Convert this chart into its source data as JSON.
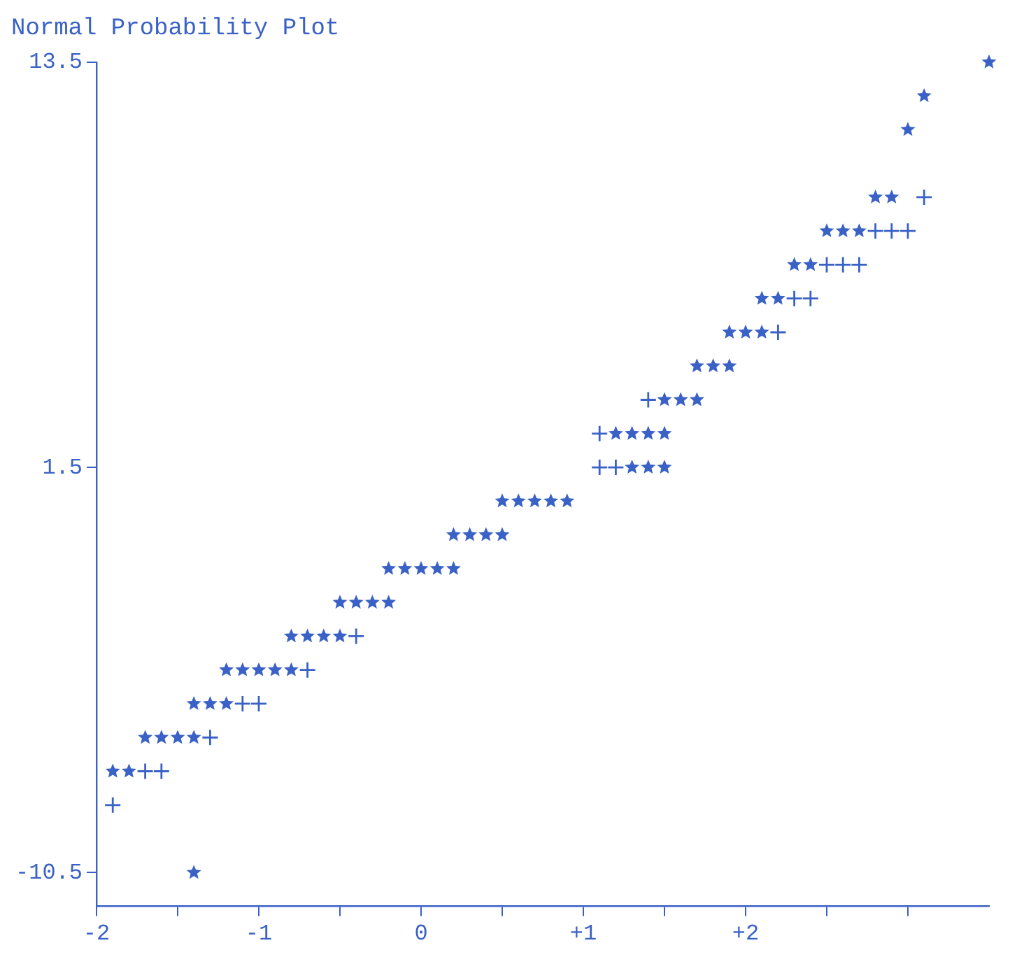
{
  "chart_data": {
    "type": "scatter",
    "title": "Normal Probability Plot",
    "xlim": [
      -2,
      3.5
    ],
    "xticks": [
      -2,
      {
        "value": -1.5,
        "label": null
      },
      -1,
      {
        "value": -0.5,
        "label": null
      },
      0,
      {
        "value": 0.5,
        "label": null
      },
      {
        "value": 1,
        "label": "+1"
      },
      {
        "value": 1.5,
        "label": null
      },
      {
        "value": 2,
        "label": "+2"
      },
      {
        "value": 2.5,
        "label": null
      },
      {
        "value": 3,
        "label": null
      }
    ],
    "ylim": [
      -11.5,
      13.5
    ],
    "yticks": [
      -10.5,
      1.5,
      13.5
    ],
    "grid": false,
    "series": [
      {
        "type": "scatter",
        "marker": "star",
        "color": "#3a62c6",
        "x": [
          -1.4,
          -1.9,
          -1.8,
          -1.7,
          -1.6,
          -1.5,
          -1.4,
          -1.4,
          -1.3,
          -1.2,
          -1.2,
          -1.1,
          -1.0,
          -0.9,
          -0.8,
          -0.8,
          -0.7,
          -0.6,
          -0.5,
          -0.5,
          -0.4,
          -0.3,
          -0.2,
          -0.2,
          -0.1,
          0,
          0.1,
          0.2,
          0.2,
          0.3,
          0.4,
          0.5,
          0.5,
          0.6,
          0.7,
          0.8,
          0.9,
          1.3,
          1.4,
          1.5,
          1.2,
          1.3,
          1.4,
          1.5,
          1.5,
          1.6,
          1.7,
          1.7,
          1.8,
          1.9,
          1.9,
          2.0,
          2.1,
          2.1,
          2.2,
          2.3,
          2.4,
          2.5,
          2.6,
          2.7,
          2.8,
          2.9,
          3.0,
          3.1,
          3.5
        ],
        "values": [
          -10.5,
          -7.5,
          -7.5,
          -6.5,
          -6.5,
          -6.5,
          -6.5,
          -5.5,
          -5.5,
          -5.5,
          -4.5,
          -4.5,
          -4.5,
          -4.5,
          -4.5,
          -3.5,
          -3.5,
          -3.5,
          -3.5,
          -2.5,
          -2.5,
          -2.5,
          -2.5,
          -1.5,
          -1.5,
          -1.5,
          -1.5,
          -1.5,
          -0.5,
          -0.5,
          -0.5,
          -0.5,
          0.5,
          0.5,
          0.5,
          0.5,
          0.5,
          1.5,
          1.5,
          1.5,
          2.5,
          2.5,
          2.5,
          2.5,
          3.5,
          3.5,
          3.5,
          4.5,
          4.5,
          4.5,
          5.5,
          5.5,
          5.5,
          6.5,
          6.5,
          7.5,
          7.5,
          8.5,
          8.5,
          8.5,
          9.5,
          9.5,
          11.5,
          12.5,
          13.5
        ]
      },
      {
        "type": "scatter",
        "marker": "cross",
        "color": "#3a62c6",
        "x": [
          -1.9,
          -1.7,
          -1.6,
          -1.3,
          -1.1,
          -1.0,
          -0.7,
          -0.4,
          1.1,
          1.2,
          1.1,
          1.4,
          2.2,
          2.3,
          2.4,
          2.5,
          2.6,
          2.7,
          2.8,
          2.9,
          3.0,
          3.1
        ],
        "values": [
          -8.5,
          -7.5,
          -7.5,
          -6.5,
          -5.5,
          -5.5,
          -4.5,
          -3.5,
          1.5,
          1.5,
          2.5,
          3.5,
          5.5,
          6.5,
          6.5,
          7.5,
          7.5,
          7.5,
          8.5,
          8.5,
          8.5,
          9.5
        ]
      }
    ]
  }
}
